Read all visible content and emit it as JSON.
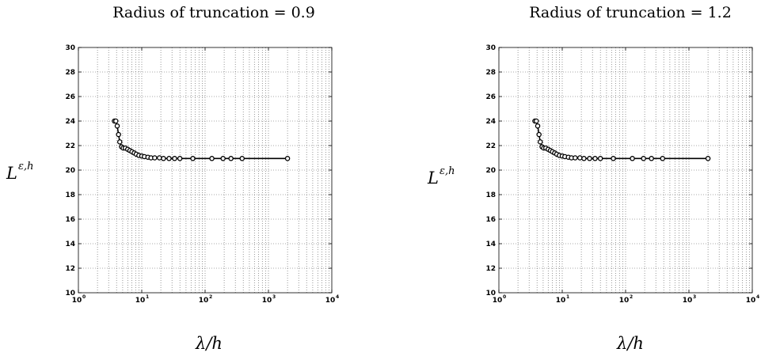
{
  "chart_data": [
    {
      "type": "line",
      "title": "Radius of truncation = 0.9",
      "xlabel": "λ/h",
      "ylabel": "L^{ε,h}",
      "xscale": "log",
      "xlim": [
        1,
        10000
      ],
      "ylim": [
        10,
        30
      ],
      "grid": true,
      "xticks": [
        "10^0",
        "10^1",
        "10^2",
        "10^3",
        "10^4"
      ],
      "yticks": [
        10,
        12,
        14,
        16,
        18,
        20,
        22,
        24,
        26,
        28,
        30
      ],
      "series": [
        {
          "x": [
            3.7,
            3.9,
            4.1,
            4.3,
            4.5,
            4.8,
            5.1,
            5.5,
            6.0,
            6.5,
            7.0,
            7.6,
            8.2,
            9.0,
            10,
            11,
            12.5,
            14,
            16,
            19,
            22,
            27,
            33,
            40,
            64,
            128,
            192,
            256,
            384,
            2000
          ],
          "y": [
            24.0,
            24.0,
            23.6,
            22.9,
            22.3,
            21.9,
            21.8,
            21.8,
            21.7,
            21.6,
            21.5,
            21.4,
            21.3,
            21.2,
            21.15,
            21.1,
            21.05,
            21.0,
            21.0,
            21.0,
            20.95,
            20.95,
            20.95,
            20.95,
            20.95,
            20.95,
            20.95,
            20.95,
            20.95,
            20.95
          ]
        }
      ]
    },
    {
      "type": "line",
      "title": "Radius of truncation = 1.2",
      "xlabel": "λ/h",
      "ylabel": "L^{ε,h}",
      "xscale": "log",
      "xlim": [
        1,
        10000
      ],
      "ylim": [
        10,
        30
      ],
      "grid": true,
      "xticks": [
        "10^0",
        "10^1",
        "10^2",
        "10^3",
        "10^4"
      ],
      "yticks": [
        10,
        12,
        14,
        16,
        18,
        20,
        22,
        24,
        26,
        28,
        30
      ],
      "series": [
        {
          "x": [
            3.7,
            3.9,
            4.1,
            4.3,
            4.5,
            4.8,
            5.1,
            5.5,
            6.0,
            6.5,
            7.0,
            7.6,
            8.2,
            9.0,
            10,
            11,
            12.5,
            14,
            16,
            19,
            22,
            27,
            33,
            40,
            64,
            128,
            192,
            256,
            384,
            2000
          ],
          "y": [
            24.0,
            24.0,
            23.6,
            22.9,
            22.3,
            21.9,
            21.8,
            21.8,
            21.7,
            21.6,
            21.5,
            21.4,
            21.3,
            21.2,
            21.15,
            21.1,
            21.05,
            21.0,
            21.0,
            21.0,
            20.95,
            20.95,
            20.95,
            20.95,
            20.95,
            20.95,
            20.95,
            20.95,
            20.95,
            20.95
          ]
        }
      ]
    }
  ]
}
